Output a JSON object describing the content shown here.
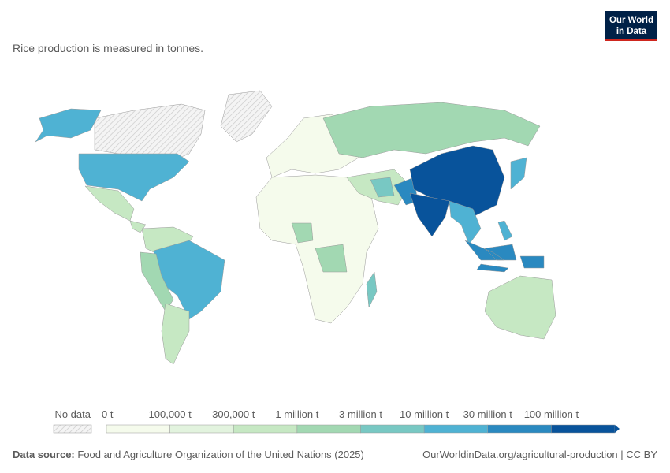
{
  "header": {
    "subtitle": "Rice production is measured in tonnes.",
    "logo": [
      "Our World",
      "in Data"
    ]
  },
  "legend": {
    "no_data": "No data",
    "labels": [
      "0 t",
      "100,000 t",
      "300,000 t",
      "1 million t",
      "3 million t",
      "10 million t",
      "30 million t",
      "100 million t"
    ],
    "colors": [
      "#f5fbec",
      "#e2f3de",
      "#c6e8c3",
      "#a2d8b2",
      "#78c8c3",
      "#4fb2d3",
      "#2a89c0",
      "#08539b"
    ]
  },
  "footer": {
    "source_label": "Data source:",
    "source": "Food and Agriculture Organization of the United Nations (2025)",
    "link": "OurWorldinData.org/agricultural-production | CC BY"
  }
}
